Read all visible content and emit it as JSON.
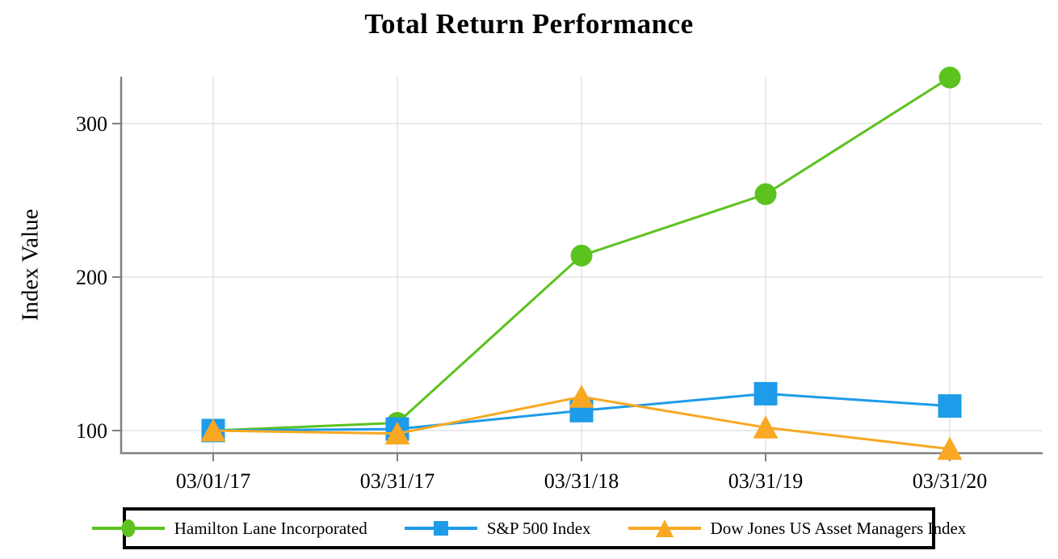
{
  "chart_data": {
    "type": "line",
    "title": "Total Return Performance",
    "ylabel": "Index Value",
    "xlabel": "",
    "categories": [
      "03/01/17",
      "03/31/17",
      "03/31/18",
      "03/31/19",
      "03/31/20"
    ],
    "yticks": [
      100,
      200,
      300
    ],
    "ylim": [
      85,
      331
    ],
    "grid": true,
    "legend_position": "bottom",
    "series": [
      {
        "name": "Hamilton Lane Incorporated",
        "color": "#5CC21E",
        "marker": "circle",
        "values": [
          100,
          105,
          214,
          254,
          330
        ]
      },
      {
        "name": "S&P 500 Index",
        "color": "#1E9BE9",
        "marker": "square",
        "values": [
          100,
          101,
          113,
          124,
          116
        ]
      },
      {
        "name": "Dow Jones US Asset Managers Index",
        "color": "#F8A822",
        "marker": "triangle",
        "values": [
          100,
          98,
          122,
          102,
          88
        ]
      }
    ]
  }
}
